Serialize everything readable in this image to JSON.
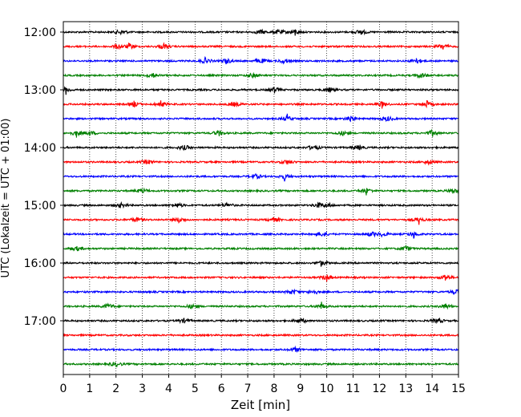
{
  "chart_data": {
    "type": "line",
    "title": "",
    "xlabel": "Zeit  [min]",
    "ylabel": "UTC (Lokalzeit = UTC + 01:00)",
    "xlim": [
      0,
      15
    ],
    "xticks": [
      0,
      1,
      2,
      3,
      4,
      5,
      6,
      7,
      8,
      9,
      10,
      11,
      12,
      13,
      14,
      15
    ],
    "x_grid": "dotted vertical lines at every minute",
    "trace_interval_min": 15,
    "hour_labels": [
      "12:00",
      "13:00",
      "14:00",
      "15:00",
      "16:00",
      "17:00"
    ],
    "trace_colors": [
      "#000000",
      "#ff0000",
      "#0000ff",
      "#008000"
    ],
    "traces": [
      {
        "start": "12:00",
        "color": "#000000",
        "events_min": [
          2.2,
          7.5,
          8.2,
          8.8,
          11.3
        ],
        "spikes_min": [
          8.8,
          11.3
        ]
      },
      {
        "start": "12:15",
        "color": "#ff0000",
        "events_min": [
          2.1,
          2.5,
          3.8,
          14.4
        ],
        "spikes_min": [
          2.5,
          3.8,
          14.4
        ]
      },
      {
        "start": "12:30",
        "color": "#0000ff",
        "events_min": [
          5.4,
          6.2,
          7.5,
          8.4,
          13.4
        ],
        "spikes_min": [
          5.4,
          6.2,
          13.4
        ]
      },
      {
        "start": "12:45",
        "color": "#008000",
        "events_min": [
          3.4,
          7.2,
          13.6
        ],
        "spikes_min": [
          3.4,
          13.6
        ]
      },
      {
        "start": "13:00",
        "color": "#000000",
        "events_min": [
          0.1,
          8.0,
          10.1
        ],
        "spikes_min": [
          0.1,
          8.0
        ]
      },
      {
        "start": "13:15",
        "color": "#ff0000",
        "events_min": [
          2.7,
          3.7,
          6.5,
          12.1,
          13.8
        ],
        "spikes_min": [
          2.7,
          3.7,
          12.1,
          13.8
        ]
      },
      {
        "start": "13:30",
        "color": "#0000ff",
        "events_min": [
          8.5,
          10.9,
          12.3
        ],
        "spikes_min": [
          8.5,
          10.9
        ]
      },
      {
        "start": "13:45",
        "color": "#008000",
        "events_min": [
          0.5,
          1.0,
          5.9,
          10.6,
          14.0
        ],
        "spikes_min": [
          0.5,
          5.9,
          14.0
        ]
      },
      {
        "start": "14:00",
        "color": "#000000",
        "events_min": [
          4.6,
          9.5,
          11.2
        ],
        "spikes_min": [
          9.5
        ]
      },
      {
        "start": "14:15",
        "color": "#ff0000",
        "events_min": [
          3.2,
          8.5,
          13.9
        ],
        "spikes_min": [
          13.9
        ]
      },
      {
        "start": "14:30",
        "color": "#0000ff",
        "events_min": [
          7.3,
          8.4
        ],
        "spikes_min": [
          8.4
        ]
      },
      {
        "start": "14:45",
        "color": "#008000",
        "events_min": [
          3.0,
          11.5,
          14.8
        ],
        "spikes_min": [
          11.5,
          14.8
        ]
      },
      {
        "start": "15:00",
        "color": "#000000",
        "events_min": [
          2.2,
          4.3,
          6.2,
          9.7,
          10.0
        ],
        "spikes_min": [
          9.7
        ]
      },
      {
        "start": "15:15",
        "color": "#ff0000",
        "events_min": [
          2.8,
          4.4,
          8.0,
          13.5
        ],
        "spikes_min": [
          4.4,
          13.5
        ]
      },
      {
        "start": "15:30",
        "color": "#0000ff",
        "events_min": [
          9.8,
          11.7,
          12.1,
          13.3
        ],
        "spikes_min": [
          13.3
        ]
      },
      {
        "start": "15:45",
        "color": "#008000",
        "events_min": [
          0.5,
          13.0
        ],
        "spikes_min": [
          13.0
        ]
      },
      {
        "start": "16:00",
        "color": "#000000",
        "events_min": [
          9.8
        ],
        "spikes_min": [
          9.8
        ]
      },
      {
        "start": "16:15",
        "color": "#ff0000",
        "events_min": [
          10.0,
          14.5
        ],
        "spikes_min": [
          10.0,
          14.5
        ]
      },
      {
        "start": "16:30",
        "color": "#0000ff",
        "events_min": [
          8.7,
          9.5,
          14.9
        ],
        "spikes_min": [
          14.9
        ]
      },
      {
        "start": "16:45",
        "color": "#008000",
        "events_min": [
          1.7,
          4.9,
          9.8,
          14.5
        ],
        "spikes_min": [
          9.8,
          14.5
        ]
      },
      {
        "start": "17:00",
        "color": "#000000",
        "events_min": [
          4.6,
          9.0,
          14.2
        ],
        "spikes_min": []
      },
      {
        "start": "17:15",
        "color": "#ff0000",
        "events_min": [],
        "spikes_min": []
      },
      {
        "start": "17:30",
        "color": "#0000ff",
        "events_min": [
          8.8
        ],
        "spikes_min": []
      },
      {
        "start": "17:45",
        "color": "#008000",
        "events_min": [
          2.0
        ],
        "spikes_min": []
      }
    ]
  }
}
